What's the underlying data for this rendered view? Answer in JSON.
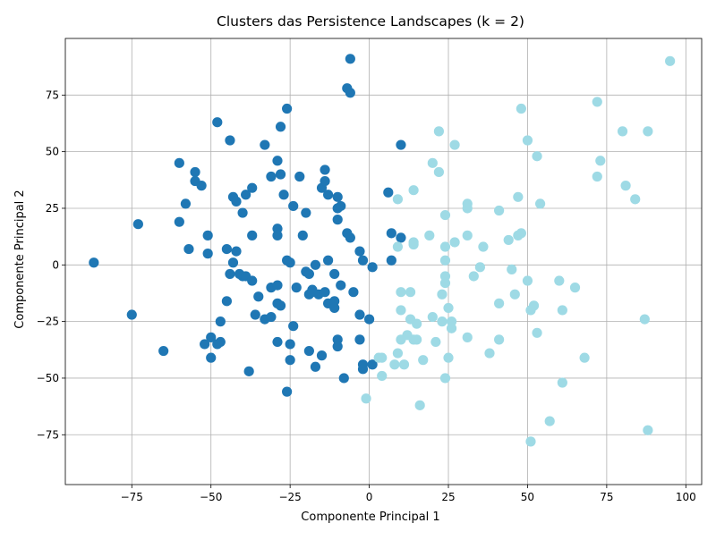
{
  "chart_data": {
    "type": "scatter",
    "title": "Clusters das Persistence Landscapes (k = 2)",
    "xlabel": "Componente Principal 1",
    "ylabel": "Componente Principal 2",
    "xlim": [
      -96,
      105
    ],
    "ylim": [
      -97,
      100
    ],
    "xticks": [
      -75,
      -50,
      -25,
      0,
      25,
      50,
      75,
      100
    ],
    "yticks": [
      -75,
      -50,
      -25,
      0,
      25,
      50,
      75
    ],
    "grid": true,
    "legend": "none",
    "colors": {
      "cluster_0": "#1f77b4",
      "cluster_1": "#9edae5"
    },
    "series": [
      {
        "cluster": 0,
        "points": [
          [
            -87,
            1
          ],
          [
            -75,
            -22
          ],
          [
            -73,
            18
          ],
          [
            -65,
            -38
          ],
          [
            -60,
            45
          ],
          [
            -60,
            19
          ],
          [
            -58,
            27
          ],
          [
            -57,
            7
          ],
          [
            -55,
            41
          ],
          [
            -55,
            37
          ],
          [
            -53,
            35
          ],
          [
            -51,
            13
          ],
          [
            -51,
            5
          ],
          [
            -52,
            -35
          ],
          [
            -50,
            -32
          ],
          [
            -50,
            -41
          ],
          [
            -48,
            63
          ],
          [
            -47,
            -25
          ],
          [
            -47,
            -34
          ],
          [
            -48,
            -35
          ],
          [
            -45,
            7
          ],
          [
            -45,
            -16
          ],
          [
            -44,
            -4
          ],
          [
            -44,
            55
          ],
          [
            -43,
            30
          ],
          [
            -43,
            1
          ],
          [
            -42,
            6
          ],
          [
            -42,
            28
          ],
          [
            -40,
            23
          ],
          [
            -40,
            -5
          ],
          [
            -41,
            -4
          ],
          [
            -39,
            31
          ],
          [
            -39,
            -5
          ],
          [
            -37,
            34
          ],
          [
            -37,
            13
          ],
          [
            -37,
            -7
          ],
          [
            -36,
            -22
          ],
          [
            -35,
            -14
          ],
          [
            -38,
            -47
          ],
          [
            -33,
            53
          ],
          [
            -33,
            -24
          ],
          [
            -31,
            -10
          ],
          [
            -31,
            39
          ],
          [
            -31,
            -23
          ],
          [
            -29,
            46
          ],
          [
            -29,
            16
          ],
          [
            -29,
            13
          ],
          [
            -29,
            -17
          ],
          [
            -29,
            -34
          ],
          [
            -28,
            61
          ],
          [
            -28,
            40
          ],
          [
            -29,
            -9
          ],
          [
            -28,
            -18
          ],
          [
            -27,
            31
          ],
          [
            -26,
            69
          ],
          [
            -26,
            -56
          ],
          [
            -26,
            2
          ],
          [
            -25,
            1
          ],
          [
            -25,
            -35
          ],
          [
            -25,
            -42
          ],
          [
            -24,
            26
          ],
          [
            -23,
            -10
          ],
          [
            -24,
            -27
          ],
          [
            -22,
            39
          ],
          [
            -21,
            13
          ],
          [
            -20,
            23
          ],
          [
            -20,
            -3
          ],
          [
            -19,
            -4
          ],
          [
            -19,
            -13
          ],
          [
            -18,
            -11
          ],
          [
            -18,
            -12
          ],
          [
            -19,
            -38
          ],
          [
            -17,
            -45
          ],
          [
            -17,
            0
          ],
          [
            -16,
            -13
          ],
          [
            -15,
            34
          ],
          [
            -15,
            -40
          ],
          [
            -14,
            42
          ],
          [
            -14,
            37
          ],
          [
            -14,
            -12
          ],
          [
            -13,
            -17
          ],
          [
            -13,
            2
          ],
          [
            -13,
            31
          ],
          [
            -11,
            -4
          ],
          [
            -11,
            -16
          ],
          [
            -11,
            -19
          ],
          [
            -10,
            30
          ],
          [
            -10,
            25
          ],
          [
            -10,
            20
          ],
          [
            -10,
            -33
          ],
          [
            -10,
            -36
          ],
          [
            -9,
            -9
          ],
          [
            -9,
            26
          ],
          [
            -8,
            -50
          ],
          [
            -7,
            14
          ],
          [
            -6,
            12
          ],
          [
            -7,
            78
          ],
          [
            -6,
            76
          ],
          [
            -6,
            91
          ],
          [
            -5,
            -12
          ],
          [
            -3,
            -22
          ],
          [
            -3,
            -33
          ],
          [
            -3,
            6
          ],
          [
            -2,
            2
          ],
          [
            -2,
            -44
          ],
          [
            -2,
            -46
          ],
          [
            0,
            -24
          ],
          [
            1,
            -1
          ],
          [
            1,
            -44
          ],
          [
            6,
            32
          ],
          [
            7,
            14
          ],
          [
            7,
            2
          ],
          [
            10,
            12
          ],
          [
            10,
            53
          ]
        ]
      },
      {
        "cluster": 1,
        "points": [
          [
            -1,
            -59
          ],
          [
            3,
            -41
          ],
          [
            4,
            -41
          ],
          [
            4,
            -49
          ],
          [
            8,
            -44
          ],
          [
            9,
            29
          ],
          [
            9,
            8
          ],
          [
            9,
            -39
          ],
          [
            10,
            -12
          ],
          [
            10,
            -33
          ],
          [
            10,
            -20
          ],
          [
            11,
            -44
          ],
          [
            12,
            -31
          ],
          [
            13,
            -12
          ],
          [
            13,
            -24
          ],
          [
            14,
            33
          ],
          [
            14,
            -33
          ],
          [
            14,
            10
          ],
          [
            14,
            9
          ],
          [
            15,
            -26
          ],
          [
            15,
            -33
          ],
          [
            16,
            -62
          ],
          [
            17,
            -42
          ],
          [
            19,
            13
          ],
          [
            20,
            45
          ],
          [
            20,
            -23
          ],
          [
            21,
            -34
          ],
          [
            22,
            59
          ],
          [
            22,
            41
          ],
          [
            23,
            -13
          ],
          [
            24,
            8
          ],
          [
            23,
            -25
          ],
          [
            24,
            -5
          ],
          [
            24,
            -8
          ],
          [
            24,
            22
          ],
          [
            24,
            2
          ],
          [
            24,
            -50
          ],
          [
            25,
            -41
          ],
          [
            25,
            -19
          ],
          [
            26,
            -25
          ],
          [
            26,
            -28
          ],
          [
            27,
            53
          ],
          [
            27,
            10
          ],
          [
            31,
            27
          ],
          [
            31,
            25
          ],
          [
            31,
            13
          ],
          [
            31,
            -32
          ],
          [
            33,
            -5
          ],
          [
            35,
            -1
          ],
          [
            36,
            8
          ],
          [
            38,
            -39
          ],
          [
            41,
            24
          ],
          [
            41,
            -17
          ],
          [
            41,
            -33
          ],
          [
            44,
            11
          ],
          [
            45,
            -2
          ],
          [
            46,
            -13
          ],
          [
            47,
            30
          ],
          [
            47,
            13
          ],
          [
            48,
            14
          ],
          [
            48,
            69
          ],
          [
            50,
            -7
          ],
          [
            50,
            55
          ],
          [
            51,
            -20
          ],
          [
            51,
            -78
          ],
          [
            52,
            -18
          ],
          [
            53,
            48
          ],
          [
            53,
            -30
          ],
          [
            54,
            27
          ],
          [
            57,
            -69
          ],
          [
            60,
            -7
          ],
          [
            61,
            -20
          ],
          [
            61,
            -52
          ],
          [
            65,
            -10
          ],
          [
            68,
            -41
          ],
          [
            72,
            39
          ],
          [
            72,
            72
          ],
          [
            73,
            46
          ],
          [
            80,
            59
          ],
          [
            81,
            35
          ],
          [
            84,
            29
          ],
          [
            87,
            -24
          ],
          [
            88,
            59
          ],
          [
            88,
            -73
          ],
          [
            95,
            90
          ]
        ]
      }
    ]
  }
}
